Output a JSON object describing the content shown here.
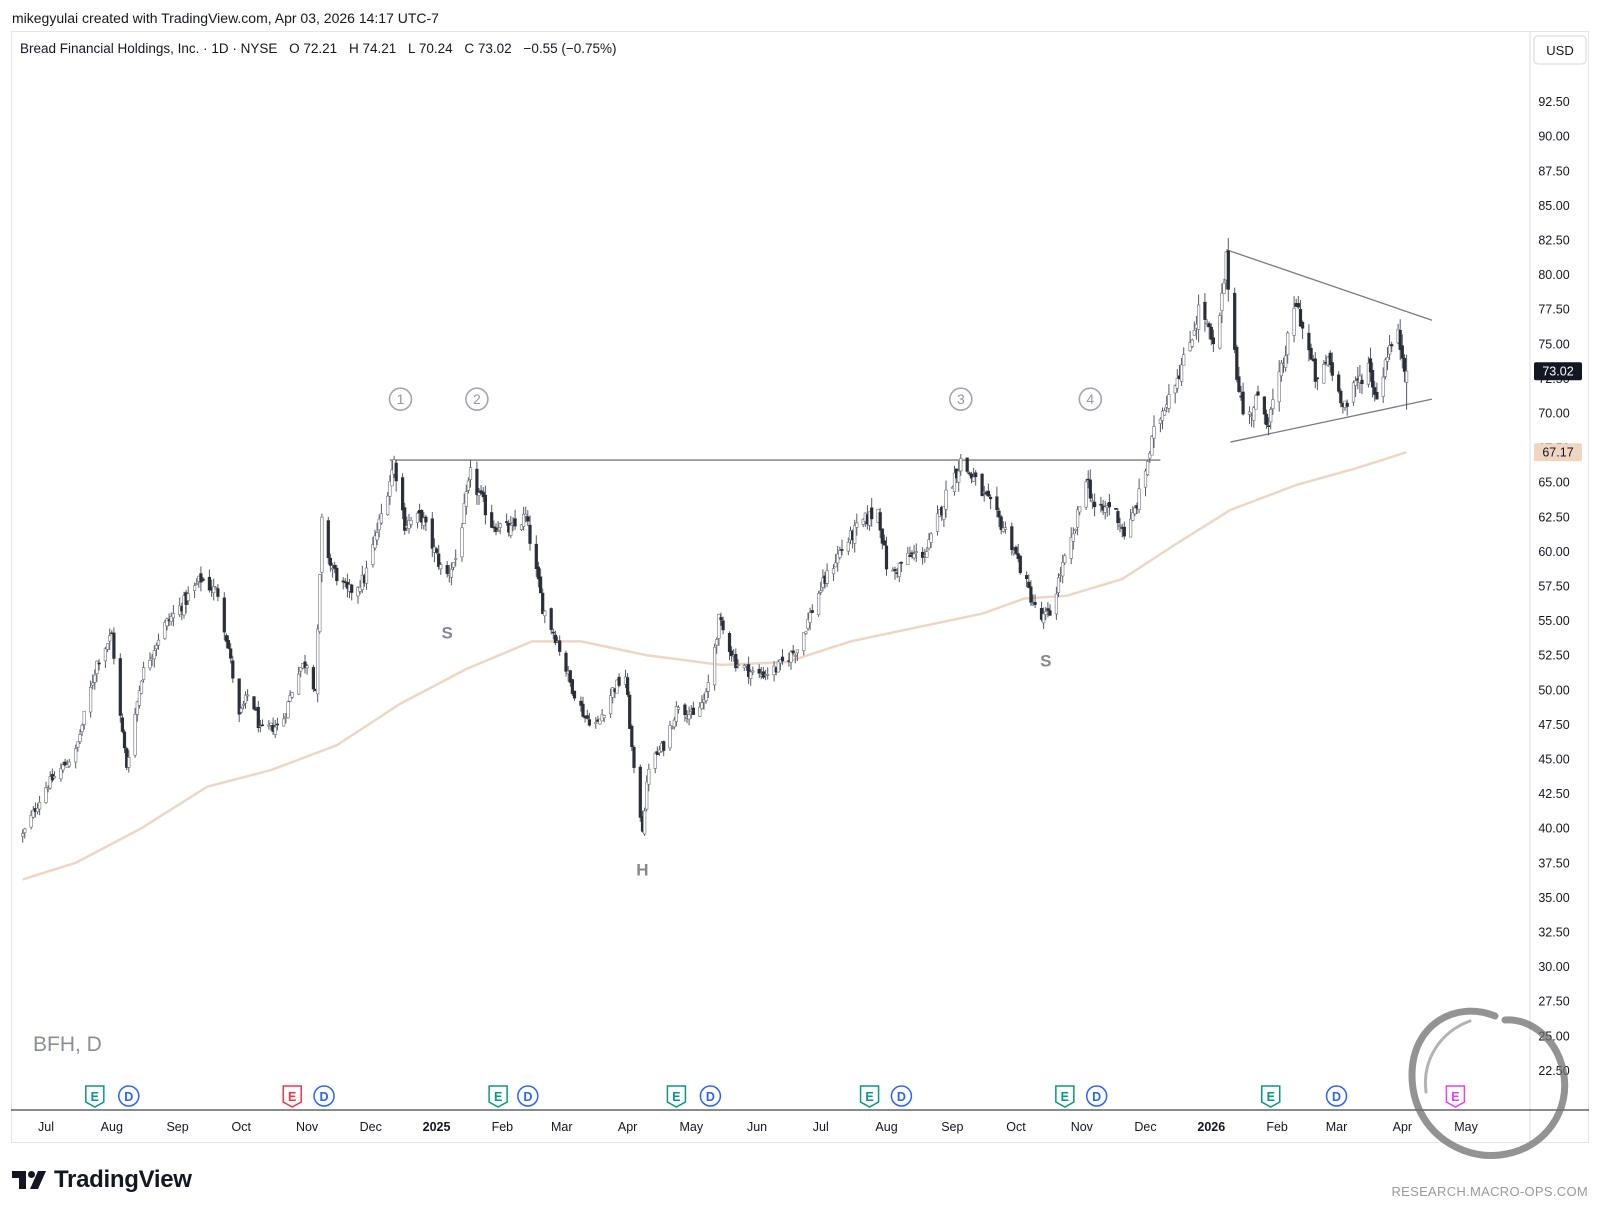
{
  "credit": "mikegyulai created with TradingView.com, Apr 03, 2026 14:17 UTC-7",
  "legend": {
    "name": "Bread Financial Holdings, Inc. · 1D · NYSE",
    "open_label": "O",
    "open": "72.21",
    "high_label": "H",
    "high": "74.21",
    "low_label": "L",
    "low": "70.24",
    "close_label": "C",
    "close": "73.02",
    "change": "−0.55 (−0.75%)"
  },
  "currency": "USD",
  "symbol_watermark": "BFH, D",
  "price_badge": "73.02",
  "ma_badge": "67.17",
  "brand": "TradingView",
  "site": "RESEARCH.MACRO-OPS.COM",
  "icon_names": [
    "tradingview-logo-icon",
    "macro-ops-enso-icon",
    "earnings-icon",
    "dividend-icon"
  ],
  "colors": {
    "up_candle": "#ffffff",
    "down_candle": "#2a2e39",
    "wick": "#555a66",
    "ma_line": "#efd6c2",
    "trendline": "#787b86",
    "earnings": "#089981",
    "earnings_red": "#f23645",
    "dividend": "#2962ff",
    "earnings_upcoming": "#e040fb"
  },
  "chart_data": {
    "type": "candlestick",
    "ylim": [
      20.0,
      95.0
    ],
    "y_ticks": [
      "22.50",
      "25.00",
      "27.50",
      "30.00",
      "32.50",
      "35.00",
      "37.50",
      "40.00",
      "42.50",
      "45.00",
      "47.50",
      "50.00",
      "52.50",
      "55.00",
      "57.50",
      "60.00",
      "62.50",
      "65.00",
      "67.50",
      "70.00",
      "72.50",
      "75.00",
      "77.50",
      "80.00",
      "82.50",
      "85.00",
      "87.50",
      "90.00",
      "92.50"
    ],
    "x_ticks": [
      {
        "label": "Jul",
        "date": "2024-07-01"
      },
      {
        "label": "Aug",
        "date": "2024-08-01"
      },
      {
        "label": "Sep",
        "date": "2024-09-01"
      },
      {
        "label": "Oct",
        "date": "2024-10-01"
      },
      {
        "label": "Nov",
        "date": "2024-11-01"
      },
      {
        "label": "Dec",
        "date": "2024-12-01"
      },
      {
        "label": "2025",
        "date": "2025-01-01",
        "bold": true
      },
      {
        "label": "Feb",
        "date": "2025-02-01"
      },
      {
        "label": "Mar",
        "date": "2025-03-01"
      },
      {
        "label": "Apr",
        "date": "2025-04-01"
      },
      {
        "label": "May",
        "date": "2025-05-01"
      },
      {
        "label": "Jun",
        "date": "2025-06-01"
      },
      {
        "label": "Jul",
        "date": "2025-07-01"
      },
      {
        "label": "Aug",
        "date": "2025-08-01"
      },
      {
        "label": "Sep",
        "date": "2025-09-01"
      },
      {
        "label": "Oct",
        "date": "2025-10-01"
      },
      {
        "label": "Nov",
        "date": "2025-11-01"
      },
      {
        "label": "Dec",
        "date": "2025-12-01"
      },
      {
        "label": "2026",
        "date": "2026-01-01",
        "bold": true
      },
      {
        "label": "Feb",
        "date": "2026-02-01"
      },
      {
        "label": "Mar",
        "date": "2026-03-01"
      },
      {
        "label": "Apr",
        "date": "2026-04-01"
      },
      {
        "label": "May",
        "date": "2026-05-01"
      }
    ],
    "close_path": [
      [
        "2024-06-20",
        39.5
      ],
      [
        "2024-07-01",
        43.0
      ],
      [
        "2024-07-15",
        45.5
      ],
      [
        "2024-07-25",
        52.0
      ],
      [
        "2024-08-01",
        54.0
      ],
      [
        "2024-08-05",
        48.0
      ],
      [
        "2024-08-08",
        44.5
      ],
      [
        "2024-08-15",
        51.0
      ],
      [
        "2024-08-25",
        54.5
      ],
      [
        "2024-09-05",
        56.5
      ],
      [
        "2024-09-12",
        58.0
      ],
      [
        "2024-09-20",
        57.0
      ],
      [
        "2024-09-25",
        53.0
      ],
      [
        "2024-09-30",
        48.0
      ],
      [
        "2024-10-05",
        50.0
      ],
      [
        "2024-10-10",
        47.0
      ],
      [
        "2024-10-20",
        47.5
      ],
      [
        "2024-10-28",
        51.5
      ],
      [
        "2024-11-01",
        52.0
      ],
      [
        "2024-11-05",
        50.0
      ],
      [
        "2024-11-08",
        62.0
      ],
      [
        "2024-11-12",
        59.0
      ],
      [
        "2024-11-20",
        57.0
      ],
      [
        "2024-11-28",
        58.0
      ],
      [
        "2024-12-05",
        62.0
      ],
      [
        "2024-12-12",
        66.5
      ],
      [
        "2024-12-17",
        62.0
      ],
      [
        "2024-12-25",
        62.5
      ],
      [
        "2025-01-05",
        58.0
      ],
      [
        "2025-01-10",
        59.5
      ],
      [
        "2025-01-17",
        65.5
      ],
      [
        "2025-01-27",
        62.0
      ],
      [
        "2025-02-05",
        61.5
      ],
      [
        "2025-02-12",
        62.5
      ],
      [
        "2025-02-20",
        56.0
      ],
      [
        "2025-02-27",
        53.5
      ],
      [
        "2025-03-05",
        50.5
      ],
      [
        "2025-03-12",
        48.0
      ],
      [
        "2025-03-18",
        47.5
      ],
      [
        "2025-03-25",
        50.0
      ],
      [
        "2025-03-31",
        51.0
      ],
      [
        "2025-04-04",
        44.0
      ],
      [
        "2025-04-08",
        40.0
      ],
      [
        "2025-04-11",
        44.5
      ],
      [
        "2025-04-18",
        46.0
      ],
      [
        "2025-04-25",
        49.0
      ],
      [
        "2025-05-02",
        48.0
      ],
      [
        "2025-05-08",
        49.5
      ],
      [
        "2025-05-14",
        55.0
      ],
      [
        "2025-05-22",
        52.0
      ],
      [
        "2025-06-01",
        51.0
      ],
      [
        "2025-06-10",
        51.5
      ],
      [
        "2025-06-20",
        53.0
      ],
      [
        "2025-06-30",
        57.0
      ],
      [
        "2025-07-10",
        60.0
      ],
      [
        "2025-07-20",
        62.0
      ],
      [
        "2025-07-28",
        63.0
      ],
      [
        "2025-08-02",
        58.0
      ],
      [
        "2025-08-10",
        59.5
      ],
      [
        "2025-08-20",
        60.0
      ],
      [
        "2025-08-30",
        64.5
      ],
      [
        "2025-09-05",
        66.5
      ],
      [
        "2025-09-12",
        65.0
      ],
      [
        "2025-09-20",
        63.0
      ],
      [
        "2025-09-28",
        61.0
      ],
      [
        "2025-10-05",
        58.0
      ],
      [
        "2025-10-12",
        55.0
      ],
      [
        "2025-10-17",
        55.5
      ],
      [
        "2025-10-22",
        58.5
      ],
      [
        "2025-10-28",
        61.0
      ],
      [
        "2025-11-03",
        65.5
      ],
      [
        "2025-11-08",
        62.5
      ],
      [
        "2025-11-15",
        63.5
      ],
      [
        "2025-11-22",
        61.0
      ],
      [
        "2025-11-28",
        64.0
      ],
      [
        "2025-12-05",
        68.5
      ],
      [
        "2025-12-12",
        71.5
      ],
      [
        "2025-12-20",
        74.0
      ],
      [
        "2025-12-27",
        78.0
      ],
      [
        "2026-01-03",
        74.0
      ],
      [
        "2026-01-08",
        81.0
      ],
      [
        "2026-01-13",
        73.0
      ],
      [
        "2026-01-17",
        69.0
      ],
      [
        "2026-01-22",
        71.0
      ],
      [
        "2026-01-28",
        69.5
      ],
      [
        "2026-02-03",
        73.0
      ],
      [
        "2026-02-10",
        78.0
      ],
      [
        "2026-02-15",
        75.0
      ],
      [
        "2026-02-20",
        72.0
      ],
      [
        "2026-02-25",
        74.0
      ],
      [
        "2026-03-02",
        71.5
      ],
      [
        "2026-03-06",
        70.5
      ],
      [
        "2026-03-10",
        72.0
      ],
      [
        "2026-03-16",
        73.5
      ],
      [
        "2026-03-20",
        71.0
      ],
      [
        "2026-03-25",
        74.5
      ],
      [
        "2026-03-30",
        75.5
      ],
      [
        "2026-04-03",
        73.02
      ]
    ],
    "ma_path": [
      [
        "2024-06-20",
        36.3
      ],
      [
        "2024-07-15",
        37.5
      ],
      [
        "2024-08-15",
        40.0
      ],
      [
        "2024-09-15",
        43.0
      ],
      [
        "2024-10-15",
        44.2
      ],
      [
        "2024-11-15",
        46.0
      ],
      [
        "2024-12-15",
        49.0
      ],
      [
        "2025-01-15",
        51.5
      ],
      [
        "2025-02-15",
        53.5
      ],
      [
        "2025-03-10",
        53.5
      ],
      [
        "2025-04-10",
        52.5
      ],
      [
        "2025-05-15",
        51.8
      ],
      [
        "2025-06-15",
        52.0
      ],
      [
        "2025-07-15",
        53.5
      ],
      [
        "2025-08-15",
        54.5
      ],
      [
        "2025-09-15",
        55.5
      ],
      [
        "2025-10-05",
        56.6
      ],
      [
        "2025-10-25",
        56.8
      ],
      [
        "2025-11-20",
        58.0
      ],
      [
        "2025-12-15",
        60.5
      ],
      [
        "2026-01-10",
        63.0
      ],
      [
        "2026-02-10",
        64.8
      ],
      [
        "2026-03-10",
        66.0
      ],
      [
        "2026-04-03",
        67.17
      ]
    ],
    "lines": [
      {
        "name": "neckline",
        "from": [
          "2024-12-10",
          66.6
        ],
        "to": [
          "2025-12-08",
          66.6
        ]
      },
      {
        "name": "triangle-upper",
        "from": [
          "2026-01-08",
          81.8
        ],
        "to": [
          "2026-04-15",
          76.7
        ]
      },
      {
        "name": "triangle-lower",
        "from": [
          "2026-01-10",
          67.9
        ],
        "to": [
          "2026-04-15",
          71.0
        ]
      }
    ],
    "annotations": [
      {
        "text": "1",
        "kind": "circle",
        "date": "2024-12-15",
        "price": 71.0
      },
      {
        "text": "2",
        "kind": "circle",
        "date": "2025-01-20",
        "price": 71.0
      },
      {
        "text": "3",
        "kind": "circle",
        "date": "2025-09-05",
        "price": 71.0
      },
      {
        "text": "4",
        "kind": "circle",
        "date": "2025-11-05",
        "price": 71.0
      },
      {
        "text": "S",
        "kind": "label",
        "date": "2025-01-06",
        "price": 53.7
      },
      {
        "text": "H",
        "kind": "label",
        "date": "2025-04-08",
        "price": 36.6
      },
      {
        "text": "S",
        "kind": "label",
        "date": "2025-10-15",
        "price": 51.7
      }
    ],
    "events": [
      {
        "type": "E",
        "date": "2024-07-24",
        "color": "earnings"
      },
      {
        "type": "D",
        "date": "2024-08-09",
        "color": "dividend"
      },
      {
        "type": "E",
        "date": "2024-10-25",
        "color": "earnings_red"
      },
      {
        "type": "D",
        "date": "2024-11-09",
        "color": "dividend"
      },
      {
        "type": "E",
        "date": "2025-01-30",
        "color": "earnings"
      },
      {
        "type": "D",
        "date": "2025-02-13",
        "color": "dividend"
      },
      {
        "type": "E",
        "date": "2025-04-24",
        "color": "earnings"
      },
      {
        "type": "D",
        "date": "2025-05-10",
        "color": "dividend"
      },
      {
        "type": "E",
        "date": "2025-07-24",
        "color": "earnings"
      },
      {
        "type": "D",
        "date": "2025-08-08",
        "color": "dividend"
      },
      {
        "type": "E",
        "date": "2025-10-24",
        "color": "earnings"
      },
      {
        "type": "D",
        "date": "2025-11-08",
        "color": "dividend"
      },
      {
        "type": "E",
        "date": "2026-01-29",
        "color": "earnings"
      },
      {
        "type": "D",
        "date": "2026-03-01",
        "color": "dividend"
      },
      {
        "type": "E",
        "date": "2026-04-26",
        "color": "earnings_upcoming"
      }
    ],
    "grid": false,
    "legend_position": "top-left"
  }
}
